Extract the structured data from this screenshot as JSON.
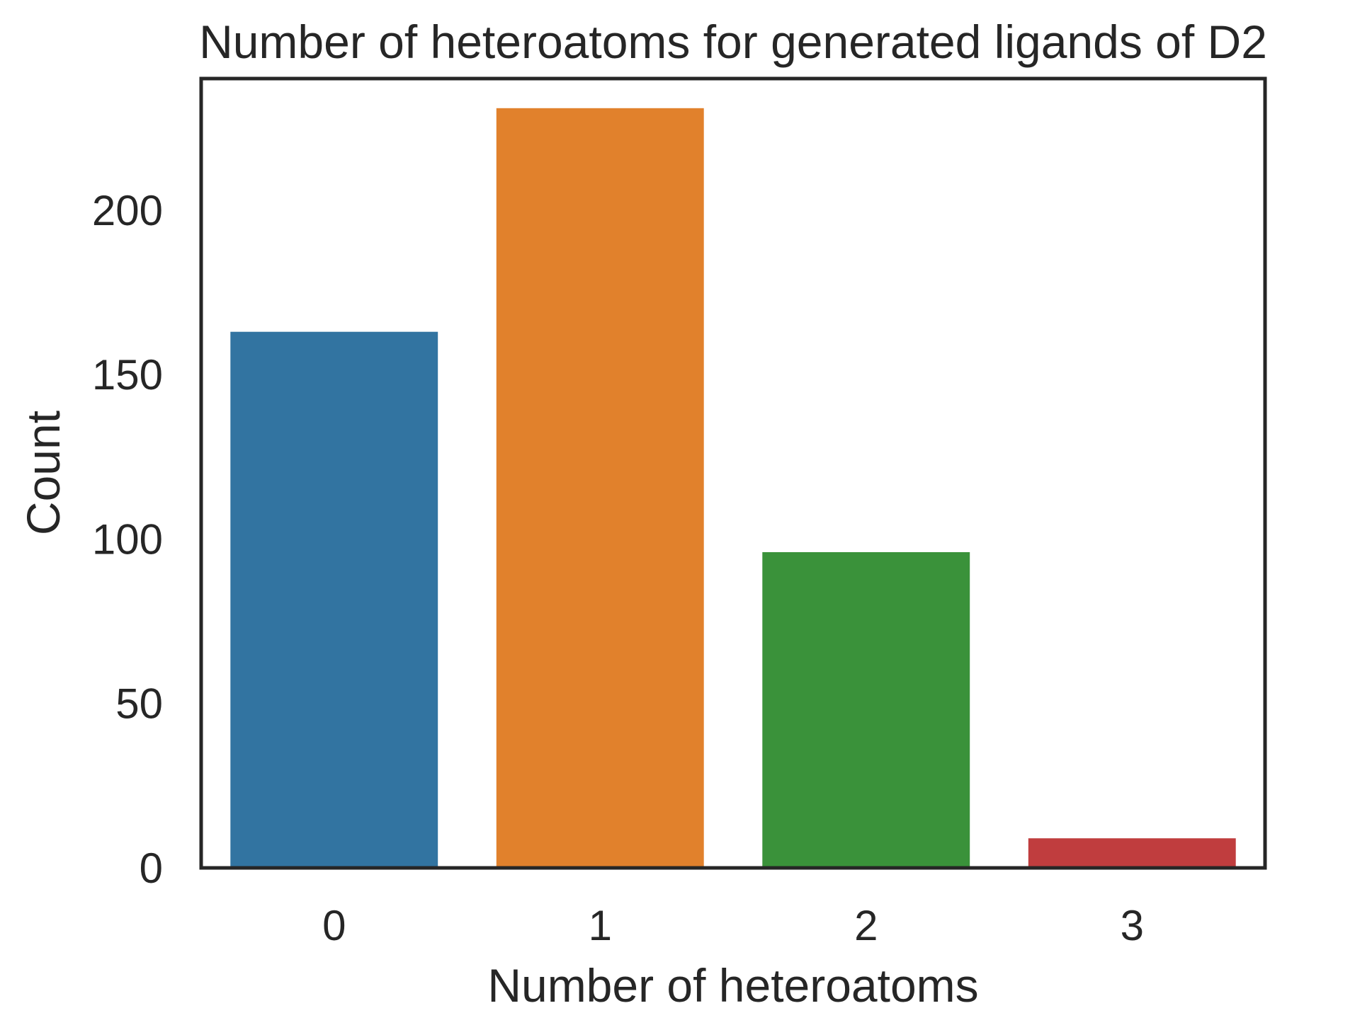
{
  "chart_data": {
    "type": "bar",
    "title": "Number of heteroatoms for generated ligands of D2",
    "xlabel": "Number of heteroatoms",
    "ylabel": "Count",
    "categories": [
      "0",
      "1",
      "2",
      "3"
    ],
    "values": [
      163,
      231,
      96,
      9
    ],
    "colors": [
      "#3274a1",
      "#e1812c",
      "#3a923a",
      "#c03d3e"
    ],
    "ylim": [
      0,
      240
    ],
    "yticks": [
      0,
      50,
      100,
      150,
      200
    ],
    "grid": false,
    "legend": "none"
  }
}
